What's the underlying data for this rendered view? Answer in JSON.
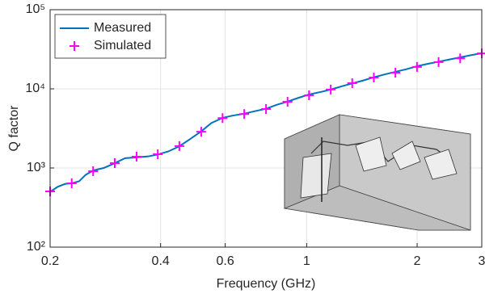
{
  "chart_data": {
    "type": "line",
    "x_label": "Frequency (GHz)",
    "y_label": "Q factor",
    "xscale": "log",
    "yscale": "log",
    "grid": true,
    "legend": "upper left",
    "xlim": [
      0.2,
      3
    ],
    "xticks": [
      0.2,
      0.4,
      0.6,
      1,
      2,
      3
    ],
    "ylim": [
      100,
      100000
    ],
    "yticks": [
      {
        "value": 100,
        "label": "10²"
      },
      {
        "value": 1000,
        "label": "10³"
      },
      {
        "value": 10000,
        "label": "10⁴"
      },
      {
        "value": 100000,
        "label": "10⁵"
      }
    ],
    "series": [
      {
        "name": "Measured",
        "color": "#0072bd",
        "style": "line",
        "x": [
          0.2,
          0.21,
          0.22,
          0.229,
          0.24,
          0.25,
          0.262,
          0.28,
          0.3,
          0.32,
          0.344,
          0.37,
          0.393,
          0.42,
          0.45,
          0.48,
          0.516,
          0.55,
          0.59,
          0.63,
          0.676,
          0.72,
          0.775,
          0.83,
          0.887,
          0.95,
          1.015,
          1.1,
          1.163,
          1.25,
          1.331,
          1.43,
          1.524,
          1.63,
          1.745,
          1.87,
          1.998,
          2.14,
          2.288,
          2.45,
          2.62,
          2.8,
          3
        ],
        "values": [
          500,
          580,
          630,
          640,
          680,
          820,
          930,
          1000,
          1150,
          1330,
          1360,
          1400,
          1480,
          1620,
          1880,
          2300,
          2900,
          3700,
          4300,
          4600,
          4850,
          5200,
          5600,
          6300,
          6900,
          7700,
          8500,
          9200,
          9800,
          10800,
          11700,
          12800,
          14000,
          15200,
          16400,
          17700,
          19300,
          20700,
          22000,
          23500,
          25000,
          26600,
          28200
        ]
      },
      {
        "name": "Simulated",
        "color": "#ff00ff",
        "style": "marker",
        "x": [
          0.2,
          0.229,
          0.262,
          0.3,
          0.344,
          0.393,
          0.45,
          0.516,
          0.59,
          0.676,
          0.775,
          0.887,
          1.015,
          1.163,
          1.331,
          1.524,
          1.745,
          1.998,
          2.288,
          2.62,
          3
        ],
        "values": [
          506,
          640,
          910,
          1150,
          1390,
          1490,
          1890,
          2870,
          4270,
          4800,
          5560,
          6860,
          8290,
          9800,
          11800,
          13900,
          16000,
          18900,
          21800,
          24300,
          28000
        ]
      }
    ]
  }
}
